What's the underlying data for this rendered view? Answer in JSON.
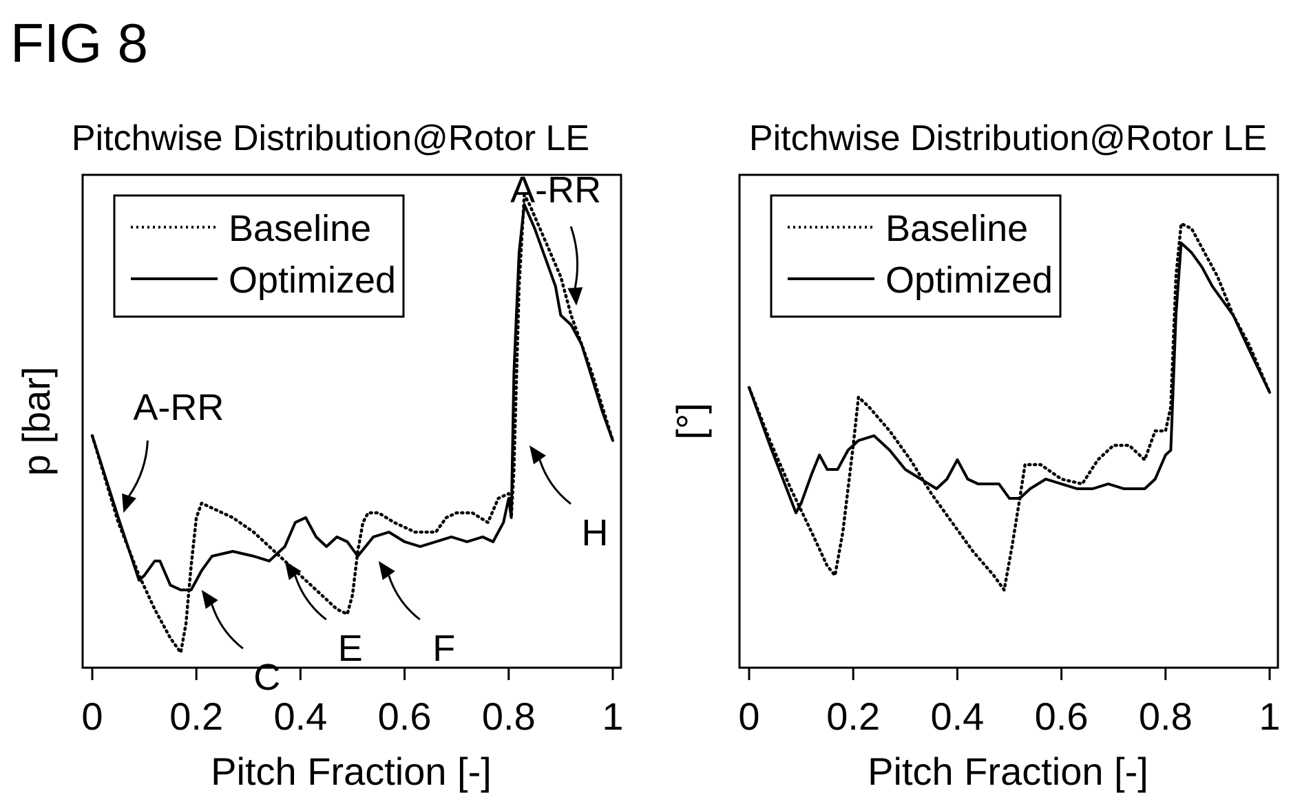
{
  "figure_label": "FIG 8",
  "chart_data": [
    {
      "type": "line",
      "title": "Pitchwise Distribution@Rotor LE",
      "xlabel": "Pitch Fraction [-]",
      "ylabel": "p [bar]",
      "xlim": [
        0,
        1
      ],
      "ylim": [
        0,
        1
      ],
      "xticks": [
        "0",
        "0.2",
        "0.4",
        "0.6",
        "0.8",
        "1"
      ],
      "grid": false,
      "legend": "top-left",
      "series": [
        {
          "name": "Baseline",
          "style": "dotted",
          "x": [
            0.0,
            0.05,
            0.09,
            0.12,
            0.15,
            0.17,
            0.18,
            0.19,
            0.2,
            0.21,
            0.23,
            0.27,
            0.31,
            0.35,
            0.39,
            0.43,
            0.47,
            0.49,
            0.5,
            0.51,
            0.52,
            0.53,
            0.55,
            0.58,
            0.62,
            0.66,
            0.68,
            0.7,
            0.73,
            0.76,
            0.78,
            0.8,
            0.805,
            0.81,
            0.82,
            0.83,
            0.84,
            0.86,
            0.88,
            0.9,
            0.92,
            0.94,
            0.96,
            0.98,
            1.0
          ],
          "y": [
            0.47,
            0.29,
            0.18,
            0.11,
            0.05,
            0.02,
            0.08,
            0.2,
            0.3,
            0.33,
            0.32,
            0.3,
            0.27,
            0.23,
            0.19,
            0.15,
            0.11,
            0.1,
            0.14,
            0.23,
            0.29,
            0.31,
            0.31,
            0.29,
            0.27,
            0.27,
            0.3,
            0.31,
            0.31,
            0.29,
            0.34,
            0.35,
            0.3,
            0.4,
            0.78,
            0.97,
            0.95,
            0.9,
            0.85,
            0.8,
            0.72,
            0.66,
            0.6,
            0.53,
            0.46
          ]
        },
        {
          "name": "Optimized",
          "style": "solid",
          "x": [
            0.0,
            0.05,
            0.09,
            0.1,
            0.12,
            0.13,
            0.15,
            0.17,
            0.19,
            0.21,
            0.23,
            0.27,
            0.31,
            0.34,
            0.37,
            0.39,
            0.41,
            0.43,
            0.45,
            0.47,
            0.49,
            0.51,
            0.54,
            0.57,
            0.6,
            0.63,
            0.66,
            0.69,
            0.72,
            0.75,
            0.77,
            0.79,
            0.8,
            0.805,
            0.81,
            0.82,
            0.83,
            0.85,
            0.87,
            0.89,
            0.9,
            0.92,
            0.94,
            0.96,
            0.98,
            1.0
          ],
          "y": [
            0.47,
            0.3,
            0.17,
            0.18,
            0.21,
            0.21,
            0.16,
            0.15,
            0.15,
            0.19,
            0.22,
            0.23,
            0.22,
            0.21,
            0.24,
            0.29,
            0.3,
            0.26,
            0.24,
            0.26,
            0.25,
            0.22,
            0.26,
            0.27,
            0.25,
            0.24,
            0.25,
            0.26,
            0.25,
            0.26,
            0.25,
            0.29,
            0.34,
            0.3,
            0.6,
            0.85,
            0.95,
            0.9,
            0.84,
            0.78,
            0.72,
            0.7,
            0.66,
            0.59,
            0.52,
            0.46
          ]
        }
      ],
      "annotations": [
        {
          "label": "A-RR",
          "x": 0.06,
          "y": 0.31,
          "anchor": "above-left"
        },
        {
          "label": "A-RR",
          "x": 0.93,
          "y": 0.74,
          "anchor": "above-right"
        },
        {
          "label": "C",
          "x": 0.21,
          "y": 0.15,
          "anchor": "below-right"
        },
        {
          "label": "E",
          "x": 0.37,
          "y": 0.21,
          "anchor": "below-right"
        },
        {
          "label": "F",
          "x": 0.55,
          "y": 0.21,
          "anchor": "below-right"
        },
        {
          "label": "H",
          "x": 0.84,
          "y": 0.45,
          "anchor": "below-right"
        }
      ]
    },
    {
      "type": "line",
      "title": "Pitchwise Distribution@Rotor LE",
      "xlabel": "Pitch Fraction [-]",
      "ylabel": "[°]",
      "xlim": [
        0,
        1
      ],
      "ylim": [
        0,
        1
      ],
      "xticks": [
        "0",
        "0.2",
        "0.4",
        "0.6",
        "0.8",
        "1"
      ],
      "grid": false,
      "legend": "top-left",
      "series": [
        {
          "name": "Baseline",
          "style": "dotted",
          "x": [
            0.0,
            0.04,
            0.08,
            0.12,
            0.15,
            0.165,
            0.18,
            0.2,
            0.21,
            0.23,
            0.27,
            0.31,
            0.35,
            0.39,
            0.43,
            0.47,
            0.49,
            0.505,
            0.52,
            0.53,
            0.56,
            0.6,
            0.64,
            0.67,
            0.7,
            0.73,
            0.76,
            0.78,
            0.8,
            0.81,
            0.82,
            0.83,
            0.85,
            0.87,
            0.9,
            0.93,
            0.96,
            1.0
          ],
          "y": [
            0.57,
            0.46,
            0.36,
            0.27,
            0.2,
            0.18,
            0.27,
            0.45,
            0.55,
            0.53,
            0.48,
            0.42,
            0.35,
            0.29,
            0.23,
            0.18,
            0.15,
            0.24,
            0.34,
            0.41,
            0.41,
            0.38,
            0.37,
            0.42,
            0.45,
            0.45,
            0.42,
            0.48,
            0.48,
            0.53,
            0.8,
            0.91,
            0.9,
            0.86,
            0.8,
            0.72,
            0.66,
            0.56
          ]
        },
        {
          "name": "Optimized",
          "style": "solid",
          "x": [
            0.0,
            0.04,
            0.09,
            0.1,
            0.12,
            0.135,
            0.15,
            0.17,
            0.19,
            0.21,
            0.24,
            0.27,
            0.3,
            0.33,
            0.36,
            0.38,
            0.4,
            0.42,
            0.44,
            0.46,
            0.48,
            0.5,
            0.52,
            0.54,
            0.57,
            0.6,
            0.63,
            0.66,
            0.69,
            0.72,
            0.74,
            0.76,
            0.78,
            0.8,
            0.81,
            0.82,
            0.83,
            0.85,
            0.87,
            0.89,
            0.91,
            0.93,
            0.96,
            1.0
          ],
          "y": [
            0.57,
            0.45,
            0.31,
            0.33,
            0.39,
            0.43,
            0.4,
            0.4,
            0.44,
            0.46,
            0.47,
            0.44,
            0.4,
            0.38,
            0.36,
            0.38,
            0.42,
            0.38,
            0.37,
            0.37,
            0.37,
            0.34,
            0.34,
            0.36,
            0.38,
            0.37,
            0.36,
            0.36,
            0.37,
            0.36,
            0.36,
            0.36,
            0.38,
            0.43,
            0.44,
            0.72,
            0.87,
            0.85,
            0.82,
            0.78,
            0.75,
            0.72,
            0.65,
            0.56
          ]
        }
      ]
    }
  ]
}
